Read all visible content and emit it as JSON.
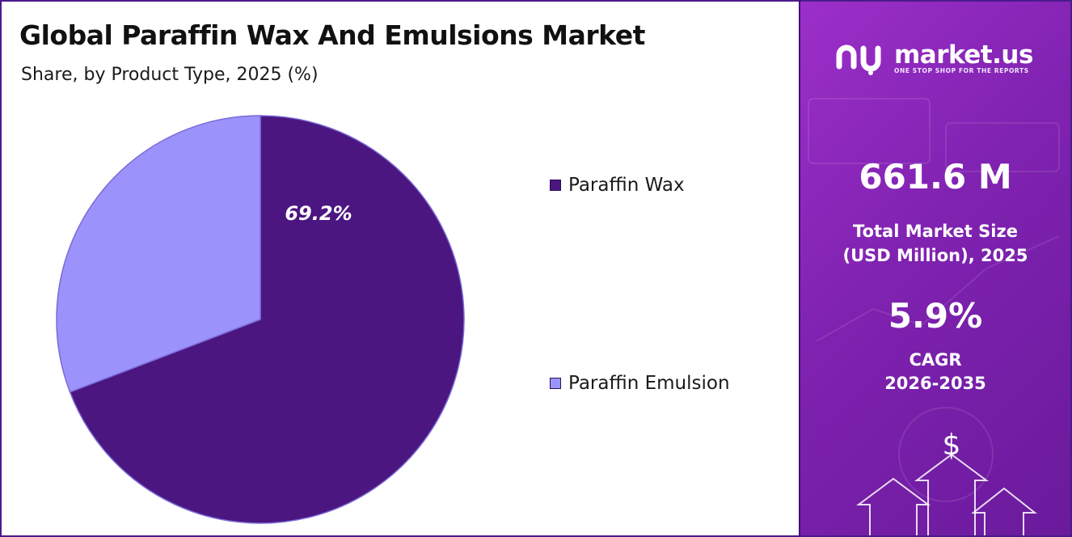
{
  "title": "Global Paraffin Wax And Emulsions Market",
  "subtitle": "Share, by Product Type, 2025 (%)",
  "chart_data": {
    "type": "pie",
    "title": "Global Paraffin Wax And Emulsions Market",
    "subtitle": "Share, by Product Type, 2025 (%)",
    "categories": [
      "Paraffin Wax",
      "Paraffin Emulsion"
    ],
    "values": [
      69.2,
      30.8
    ],
    "data_labels": [
      "69.2%",
      ""
    ],
    "colors": [
      "#4b1680",
      "#9b93fb"
    ],
    "legend_position": "right"
  },
  "sidebar": {
    "brand": "market.us",
    "tagline": "ONE STOP SHOP FOR THE REPORTS",
    "market_size_value": "661.6 M",
    "market_size_label_line1": "Total Market Size",
    "market_size_label_line2": "(USD Million), 2025",
    "cagr_value": "5.9%",
    "cagr_label_line1": "CAGR",
    "cagr_label_line2": "2026-2035",
    "currency_symbol": "$"
  }
}
